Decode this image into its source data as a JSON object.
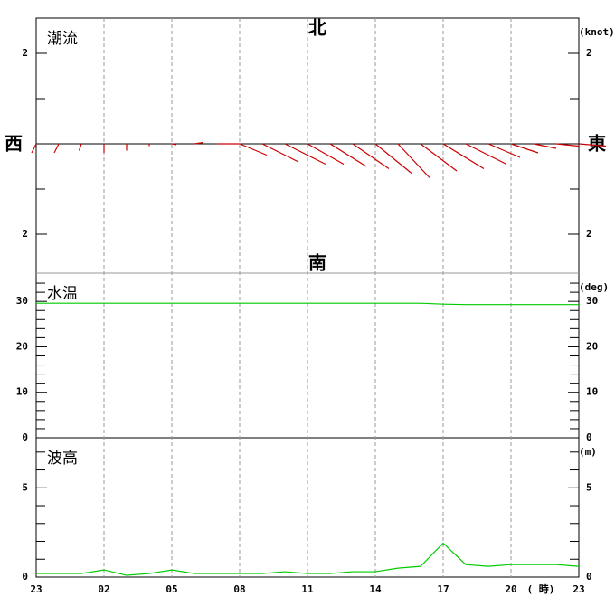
{
  "chart_data": [
    {
      "type": "vector",
      "title": "潮流",
      "unit": "(knot)",
      "north_label": "北",
      "south_label": "南",
      "west_label": "西",
      "east_label": "東",
      "color": "#cc0000",
      "east": [
        -0.1,
        -0.1,
        -0.05,
        0,
        0,
        0,
        0.1,
        0.2,
        0.5,
        0.6,
        0.8,
        0.9,
        0.8,
        0.8,
        0.8,
        0.8,
        0.7,
        0.8,
        0.9,
        0.9,
        0.7,
        0.6,
        0.5,
        0.5,
        0.6
      ],
      "north": [
        -0.2,
        -0.2,
        -0.15,
        -0.2,
        -0.15,
        -0.05,
        -0.02,
        0.03,
        0,
        -0.25,
        -0.4,
        -0.45,
        -0.45,
        -0.5,
        -0.55,
        -0.65,
        -0.75,
        -0.6,
        -0.55,
        -0.45,
        -0.3,
        -0.2,
        -0.1,
        -0.05,
        -0.05
      ],
      "ylim": [
        -2.86,
        2.78
      ],
      "yticks": [
        2,
        {
          "value": -2,
          "label": "2"
        }
      ],
      "yminor": [
        1,
        -1
      ]
    },
    {
      "type": "line",
      "title": "水温",
      "unit": "(deg)",
      "color": "#00cc00",
      "values": [
        29.6,
        29.6,
        29.6,
        29.6,
        29.6,
        29.6,
        29.6,
        29.6,
        29.6,
        29.6,
        29.6,
        29.6,
        29.6,
        29.6,
        29.6,
        29.6,
        29.6,
        29.6,
        29.4,
        29.3,
        29.3,
        29.3,
        29.3,
        29.3,
        29.3
      ],
      "ylim": [
        0,
        36.2
      ],
      "yticks": [
        0,
        10,
        20,
        30
      ],
      "yminor": [
        2,
        4,
        6,
        8,
        12,
        14,
        16,
        18,
        22,
        24,
        26,
        28,
        32,
        34
      ]
    },
    {
      "type": "line",
      "title": "波高",
      "unit": "(m)",
      "color": "#00cc00",
      "x_unit": "( 時)",
      "categories": [
        "23",
        null,
        null,
        "02",
        null,
        null,
        "05",
        null,
        null,
        "08",
        null,
        null,
        "11",
        null,
        null,
        "14",
        null,
        null,
        "17",
        null,
        null,
        "20",
        null,
        null,
        "23"
      ],
      "values": [
        0.2,
        0.2,
        0.2,
        0.4,
        0.1,
        0.2,
        0.4,
        0.2,
        0.2,
        0.2,
        0.2,
        0.3,
        0.2,
        0.2,
        0.3,
        0.3,
        0.5,
        0.6,
        1.9,
        0.7,
        0.6,
        0.7,
        0.7,
        0.7,
        0.6
      ],
      "ylim": [
        0,
        7.8
      ],
      "yticks": [
        0,
        5
      ],
      "yminor": [
        1,
        2,
        3,
        4,
        6,
        7
      ]
    }
  ]
}
